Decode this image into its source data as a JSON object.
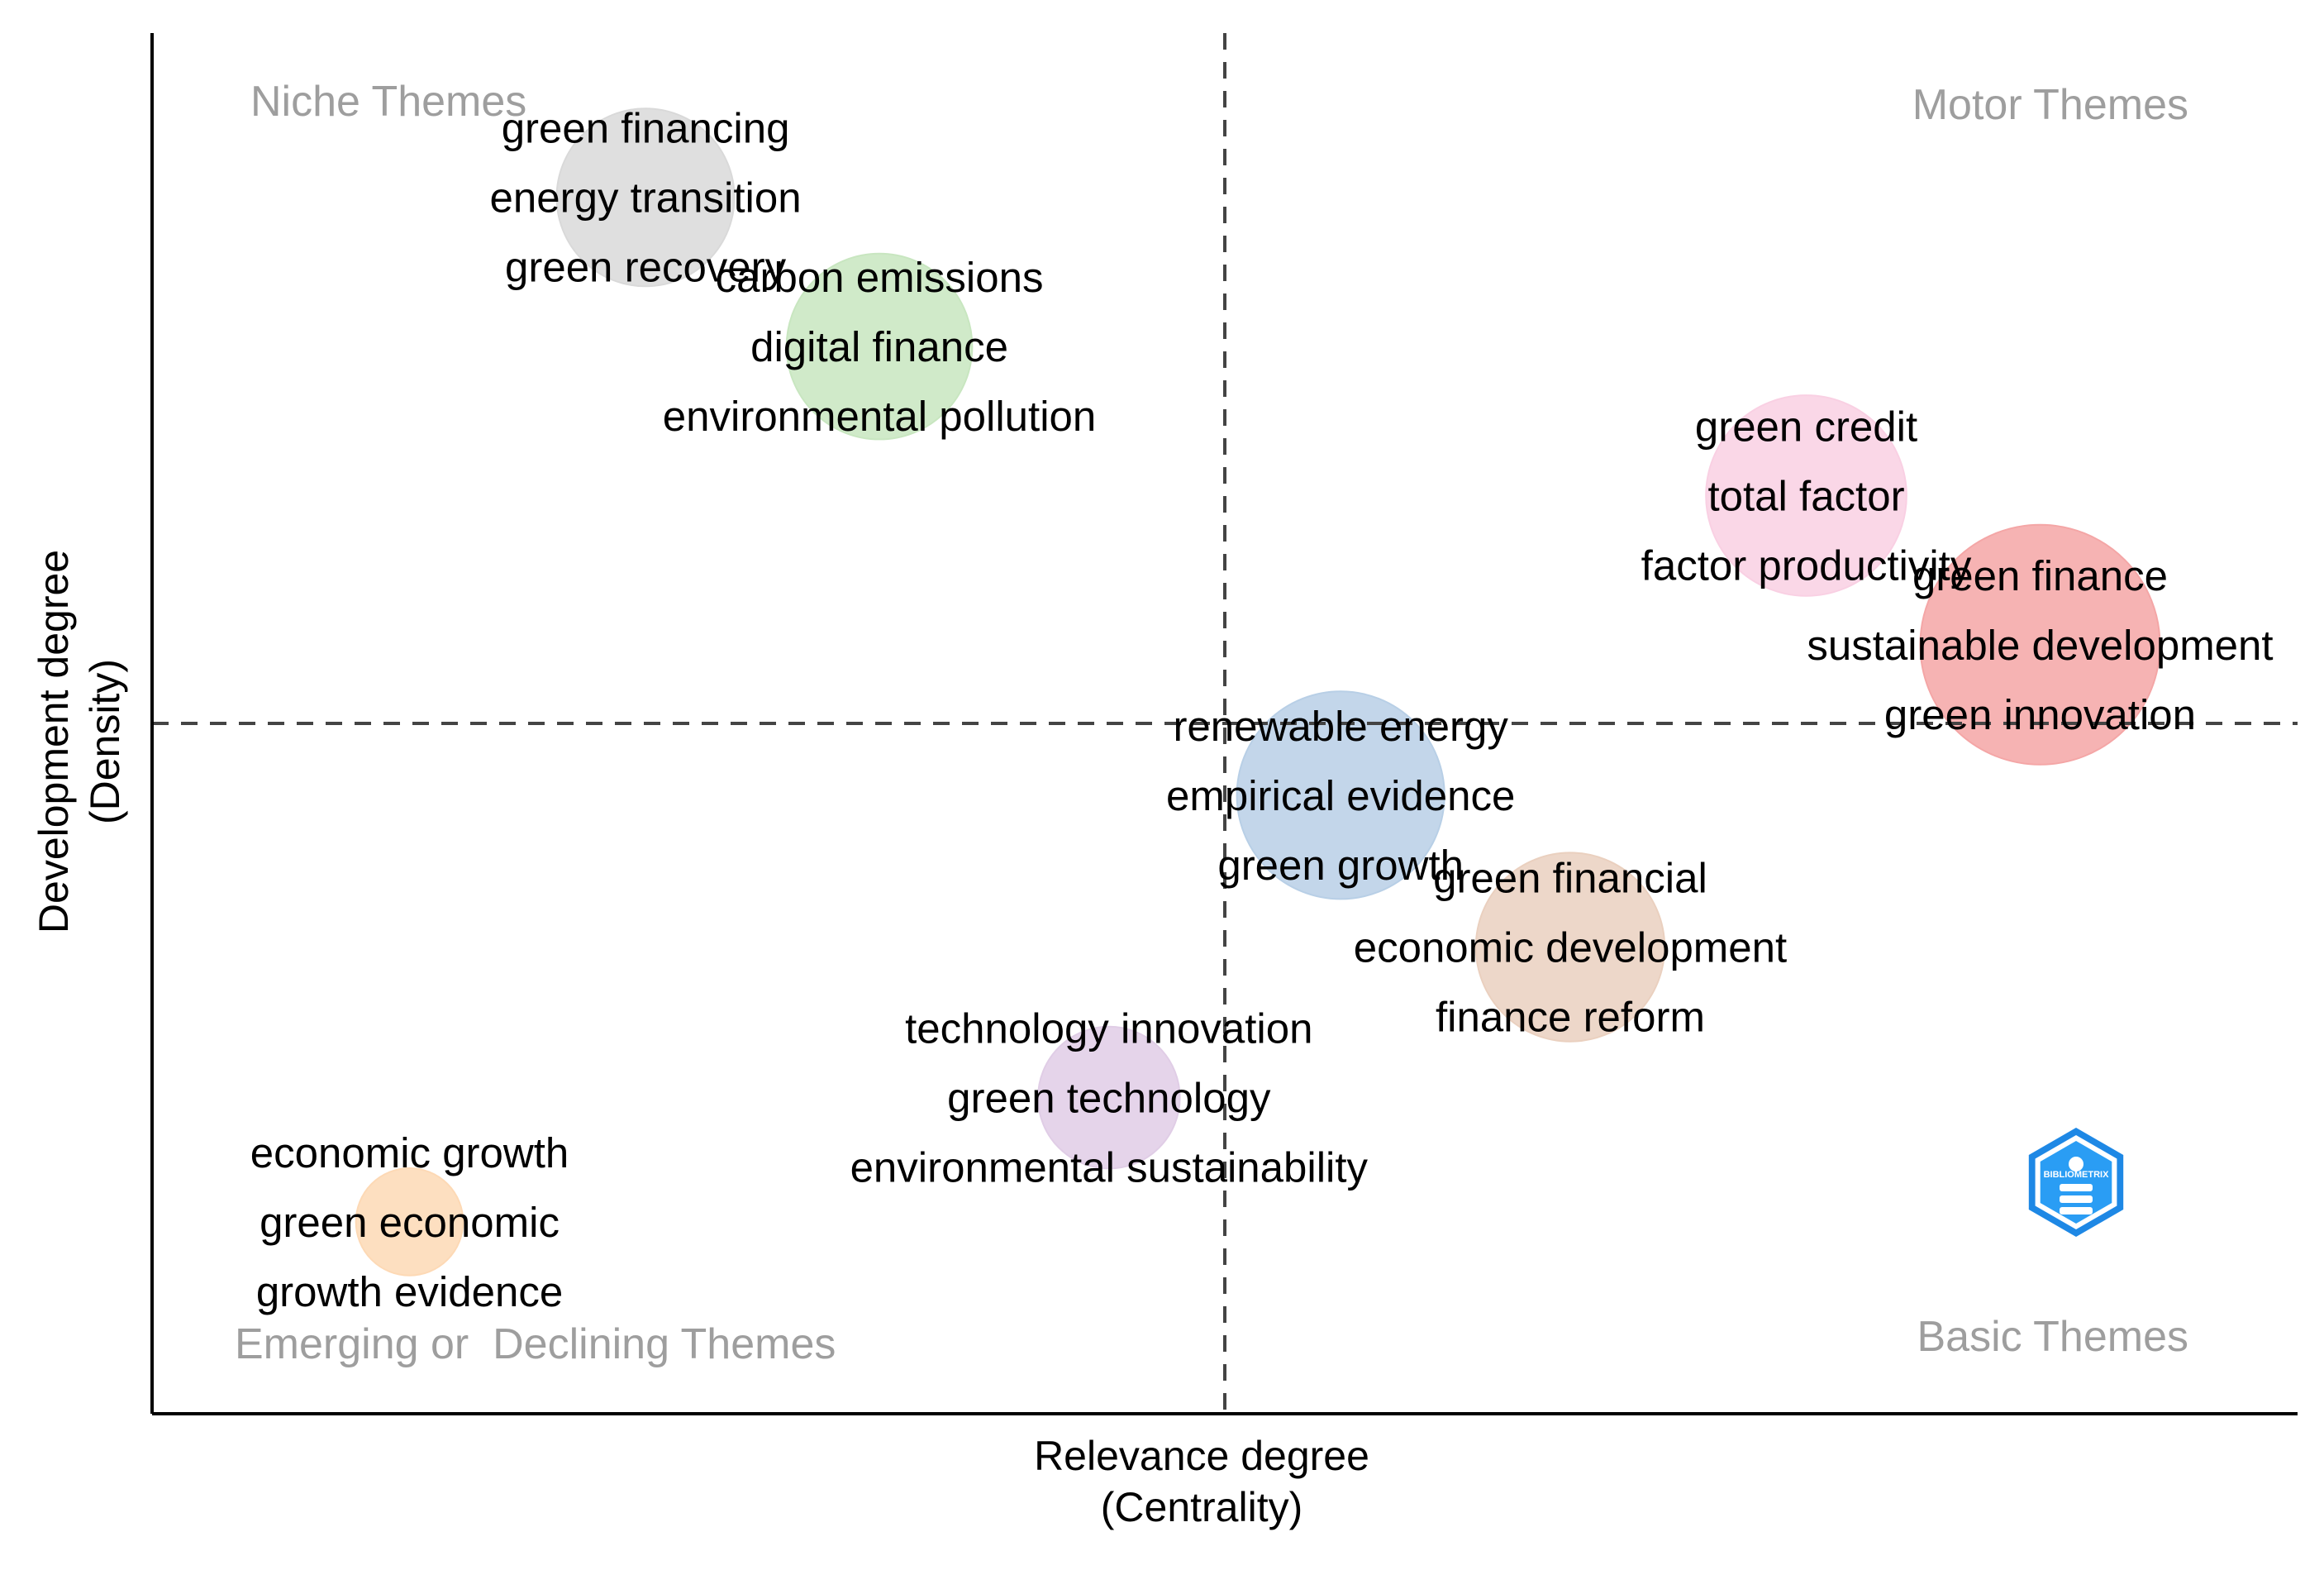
{
  "chart_data": {
    "type": "scatter",
    "title": "",
    "xlabel": "Relevance degree\n(Centrality)",
    "ylabel": "Development degree\n(Density)",
    "xlim": [
      0,
      100
    ],
    "ylim": [
      0,
      100
    ],
    "grid": false,
    "show_ticks": false,
    "reference_lines": {
      "x": 50,
      "y": 50
    },
    "quadrant_labels": {
      "top_left": "Niche Themes",
      "top_right": "Motor Themes",
      "bottom_left": "Emerging or  Declining Themes",
      "bottom_right": "Basic Themes"
    },
    "clusters": [
      {
        "x": 23.0,
        "y": 88.1,
        "size": 0.55,
        "color": "#d9d9d9",
        "labels": [
          "green financing",
          "energy transition",
          "green recovery"
        ]
      },
      {
        "x": 33.9,
        "y": 77.3,
        "size": 0.6,
        "color": "#c8e6c0",
        "labels": [
          "carbon emissions",
          "digital finance",
          "environmental pollution"
        ]
      },
      {
        "x": 77.1,
        "y": 66.5,
        "size": 0.7,
        "color": "#f9d0e3",
        "labels": [
          "green credit",
          "total factor",
          "factor productivity"
        ]
      },
      {
        "x": 88.0,
        "y": 55.7,
        "size": 1.0,
        "color": "#f4a6a6",
        "labels": [
          "green finance",
          "sustainable development",
          "green innovation"
        ]
      },
      {
        "x": 55.4,
        "y": 44.8,
        "size": 0.75,
        "color": "#b8cfe6",
        "labels": [
          "renewable energy",
          "empirical evidence",
          "green growth"
        ]
      },
      {
        "x": 66.1,
        "y": 33.8,
        "size": 0.62,
        "color": "#ead0bf",
        "labels": [
          "green financial",
          "economic development",
          "finance reform"
        ]
      },
      {
        "x": 44.6,
        "y": 22.9,
        "size": 0.35,
        "color": "#e0cde6",
        "labels": [
          "technology innovation",
          "green technology",
          "environmental sustainability"
        ]
      },
      {
        "x": 12.0,
        "y": 13.9,
        "size": 0.2,
        "color": "#fdd9b5",
        "labels": [
          "economic growth",
          "green  economic",
          "growth evidence"
        ]
      }
    ],
    "logo": {
      "name": "bibliometrix-logo-icon",
      "text": "BIBLIOMETRIX",
      "color": "#1e88e5"
    }
  }
}
